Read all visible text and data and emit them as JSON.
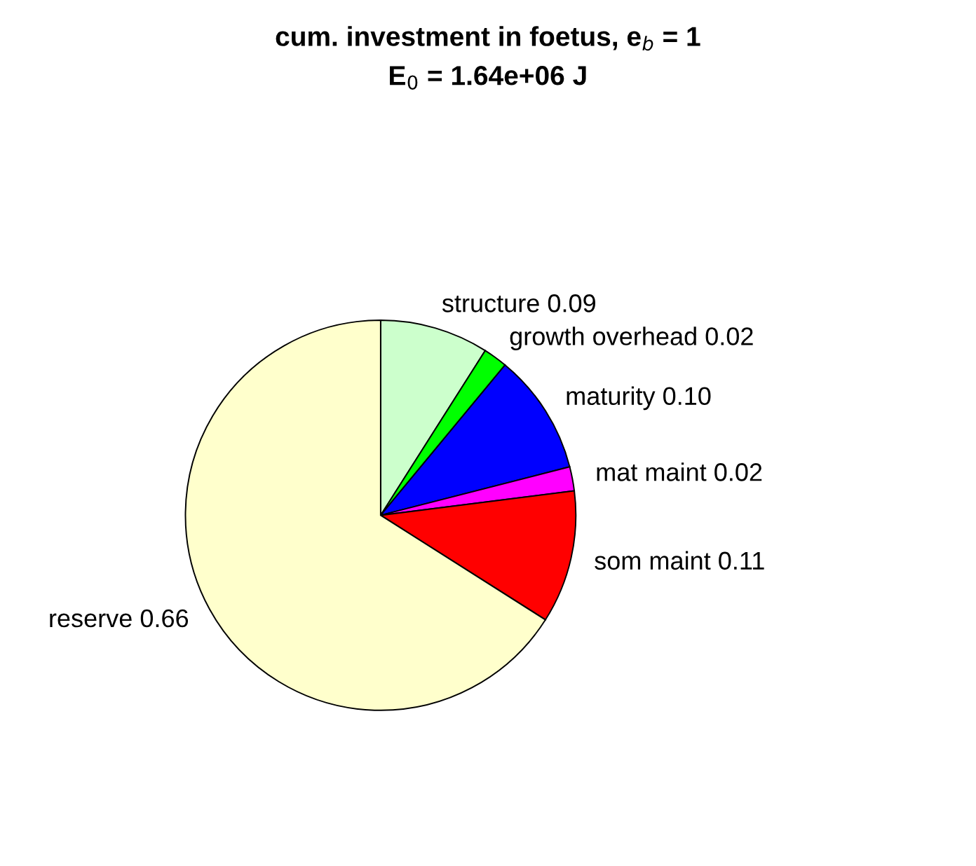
{
  "chart_data": {
    "type": "pie",
    "title": "cum. investment in foetus, e$_{b}$ = 1",
    "subtitle": "E$_{0}$ = 1.64e+06 J",
    "categories": [
      "structure",
      "growth overhead",
      "maturity",
      "mat maint",
      "som maint",
      "reserve"
    ],
    "values": [
      0.09,
      0.02,
      0.1,
      0.02,
      0.11,
      0.66
    ],
    "value_labels": [
      "0.09",
      "0.02",
      "0.10",
      "0.02",
      "0.11",
      "0.66"
    ],
    "colors": [
      "#ccffcc",
      "#00ff00",
      "#0000ff",
      "#ff00ff",
      "#ff0000",
      "#ffffcc"
    ],
    "legend": false
  }
}
